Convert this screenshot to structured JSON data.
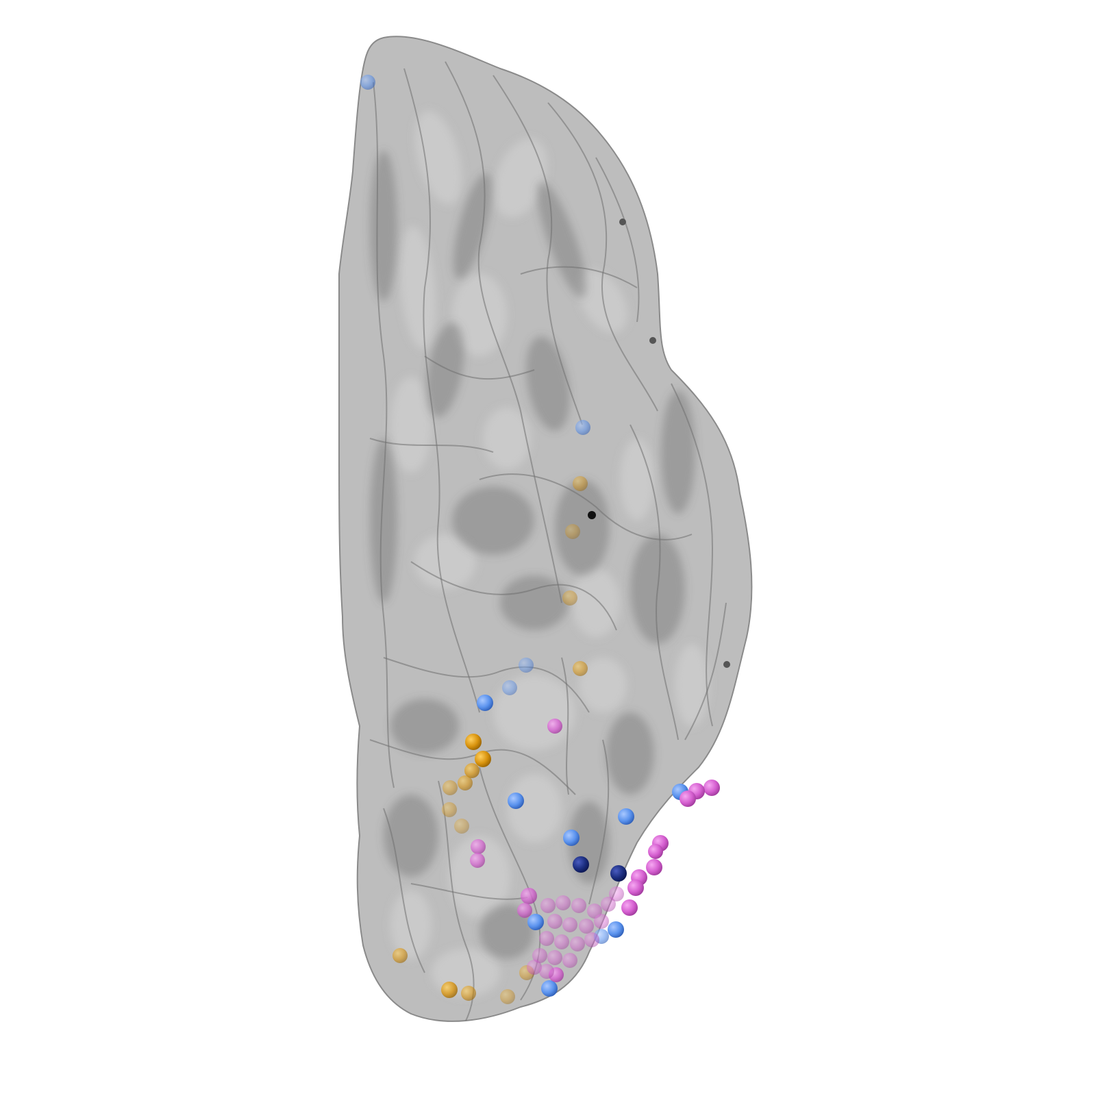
{
  "scene": {
    "background": "#ffffff",
    "surface_color": "#9a9a9a",
    "electrode_groups": [
      {
        "name": "light-blue",
        "color": "#5b93ee"
      },
      {
        "name": "dark-blue",
        "color": "#1c2e80"
      },
      {
        "name": "orange",
        "color": "#d9940f"
      },
      {
        "name": "pink",
        "color": "#d55fd0"
      },
      {
        "name": "black",
        "color": "#111111"
      },
      {
        "name": "gray",
        "color": "#555555"
      }
    ]
  }
}
